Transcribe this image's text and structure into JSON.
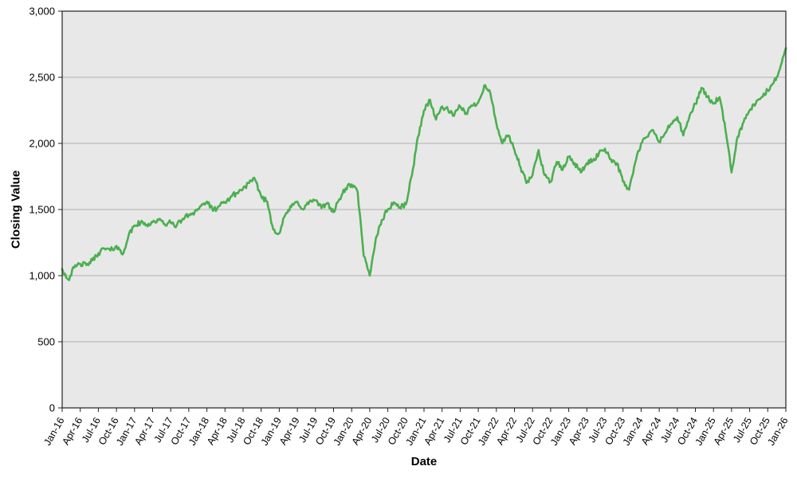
{
  "chart_data": {
    "type": "line",
    "title": "",
    "xlabel": "Date",
    "ylabel": "Closing Value",
    "ylim": [
      0,
      3000
    ],
    "yticks": [
      0,
      500,
      1000,
      1500,
      2000,
      2500,
      3000
    ],
    "ytick_labels": [
      "0",
      "500",
      "1,000",
      "1,500",
      "2,000",
      "2,500",
      "3,000"
    ],
    "xtick_labels": [
      "Jan-16",
      "Apr-16",
      "Jul-16",
      "Oct-16",
      "Jan-17",
      "Apr-17",
      "Jul-17",
      "Oct-17",
      "Jan-18",
      "Apr-18",
      "Jul-18",
      "Oct-18",
      "Jan-19",
      "Apr-19",
      "Jul-19",
      "Oct-19",
      "Jan-20",
      "Apr-20",
      "Jul-20",
      "Oct-20",
      "Jan-21",
      "Apr-21",
      "Jul-21",
      "Oct-21",
      "Jan-22",
      "Apr-22",
      "Jul-22",
      "Oct-22",
      "Jan-23",
      "Apr-23",
      "Jul-23",
      "Oct-23",
      "Jan-24",
      "Apr-24",
      "Jul-24",
      "Oct-24",
      "Jan-25",
      "Apr-25",
      "Jul-25",
      "Oct-25",
      "Jan-26"
    ],
    "grid": "horizontal",
    "legend": "none",
    "line_color": "#4caf50",
    "plot_bg": "#e8e8e8",
    "grid_color": "#b0b0b0",
    "axis_color": "#222222",
    "noise_amplitude": 20,
    "points_per_month": 6,
    "series": [
      {
        "name": "Closing Value",
        "x_start": "Jan-16",
        "x_end": "Jan-26",
        "x_step": "month",
        "monthly_values": [
          1050,
          970,
          1060,
          1090,
          1080,
          1115,
          1170,
          1205,
          1190,
          1225,
          1160,
          1300,
          1380,
          1400,
          1385,
          1405,
          1420,
          1390,
          1400,
          1380,
          1430,
          1460,
          1485,
          1525,
          1560,
          1490,
          1525,
          1550,
          1600,
          1625,
          1660,
          1700,
          1725,
          1600,
          1560,
          1350,
          1320,
          1460,
          1520,
          1560,
          1500,
          1560,
          1570,
          1510,
          1550,
          1480,
          1580,
          1660,
          1690,
          1630,
          1150,
          1000,
          1280,
          1420,
          1500,
          1555,
          1515,
          1540,
          1760,
          2050,
          2250,
          2330,
          2180,
          2280,
          2250,
          2210,
          2280,
          2230,
          2285,
          2310,
          2440,
          2380,
          2150,
          2000,
          2060,
          1950,
          1820,
          1700,
          1760,
          1950,
          1760,
          1710,
          1860,
          1800,
          1900,
          1850,
          1780,
          1850,
          1870,
          1925,
          1960,
          1880,
          1850,
          1710,
          1650,
          1850,
          2000,
          2050,
          2100,
          2010,
          2080,
          2150,
          2200,
          2060,
          2200,
          2300,
          2420,
          2350,
          2300,
          2350,
          2100,
          1780,
          2050,
          2160,
          2250,
          2300,
          2350,
          2400,
          2460,
          2560,
          2720
        ]
      }
    ]
  }
}
